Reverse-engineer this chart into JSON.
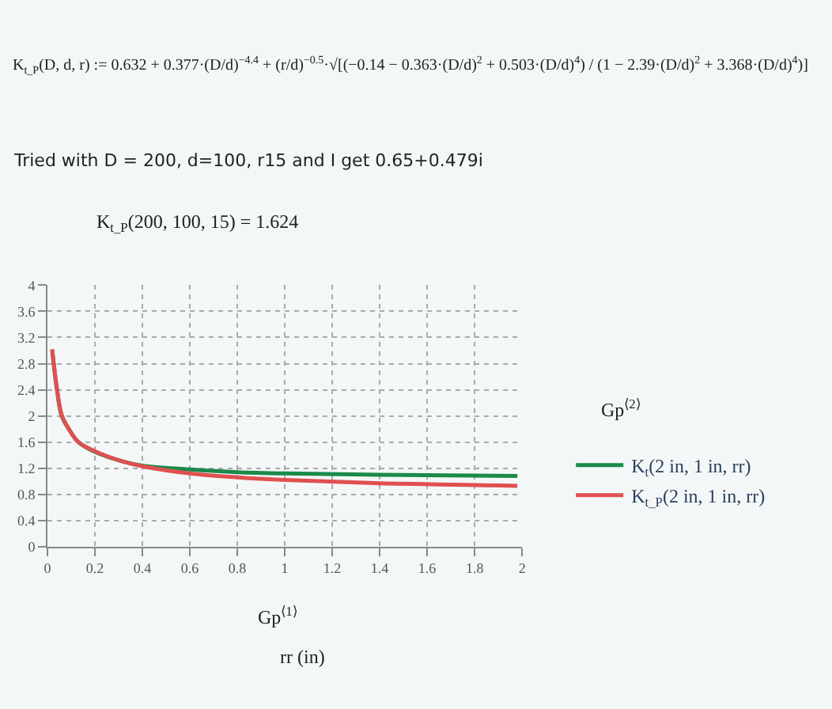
{
  "chart_data": {
    "type": "line",
    "annotations": [
      "K$_{t_P}$(D, d, r) := 0.632 + 0.377·(D/d)$^{−4.4}$ + (r/d)$^{−0.5}$·√[(−0.14 − 0.363·(D/d)$^{2}$ + 0.503·(D/d)$^{4}$) / (1 − 2.39·(D/d)$^{2}$ + 3.368·(D/d)$^{4}$)]",
      "Tried with D = 200, d=100, r15 and I get 0.65+0.479i",
      "K$_{t_P}$(200, 100, 15) = 1.624",
      "Gp$^{⟨1⟩}$",
      "Gp$^{⟨2⟩}$"
    ],
    "xlabel": "rr (in)",
    "series": [
      {
        "name": "K$_{t}$(2 in, 1 in, rr)",
        "color": "#1a8a4a",
        "x": [
          0.02,
          0.04,
          0.06,
          0.09,
          0.13,
          0.2,
          0.32,
          0.4,
          0.6,
          0.8,
          1.0,
          1.4,
          1.98
        ],
        "values": [
          3.0,
          2.4,
          2.0,
          1.8,
          1.6,
          1.45,
          1.3,
          1.24,
          1.18,
          1.14,
          1.12,
          1.1,
          1.08
        ]
      },
      {
        "name": "K$_{t_P}$(2 in, 1 in, rr)",
        "color": "#e05050",
        "x": [
          0.02,
          0.04,
          0.06,
          0.09,
          0.13,
          0.2,
          0.32,
          0.4,
          0.6,
          0.8,
          1.0,
          1.4,
          1.98
        ],
        "values": [
          3.02,
          2.42,
          2.02,
          1.8,
          1.6,
          1.46,
          1.3,
          1.23,
          1.12,
          1.06,
          1.02,
          0.97,
          0.93
        ]
      }
    ],
    "xlim": [
      0,
      2
    ],
    "xticks": [
      0,
      0.2,
      0.4,
      0.6,
      0.8,
      1,
      1.2,
      1.4,
      1.6,
      1.8,
      2
    ],
    "ylim": [
      0,
      4
    ],
    "yticks": [
      0,
      0.4,
      0.8,
      1.2,
      1.6,
      2,
      2.4,
      2.8,
      3.2,
      3.6,
      4
    ],
    "grid": true,
    "legend": "right",
    "line_style": "solid"
  }
}
